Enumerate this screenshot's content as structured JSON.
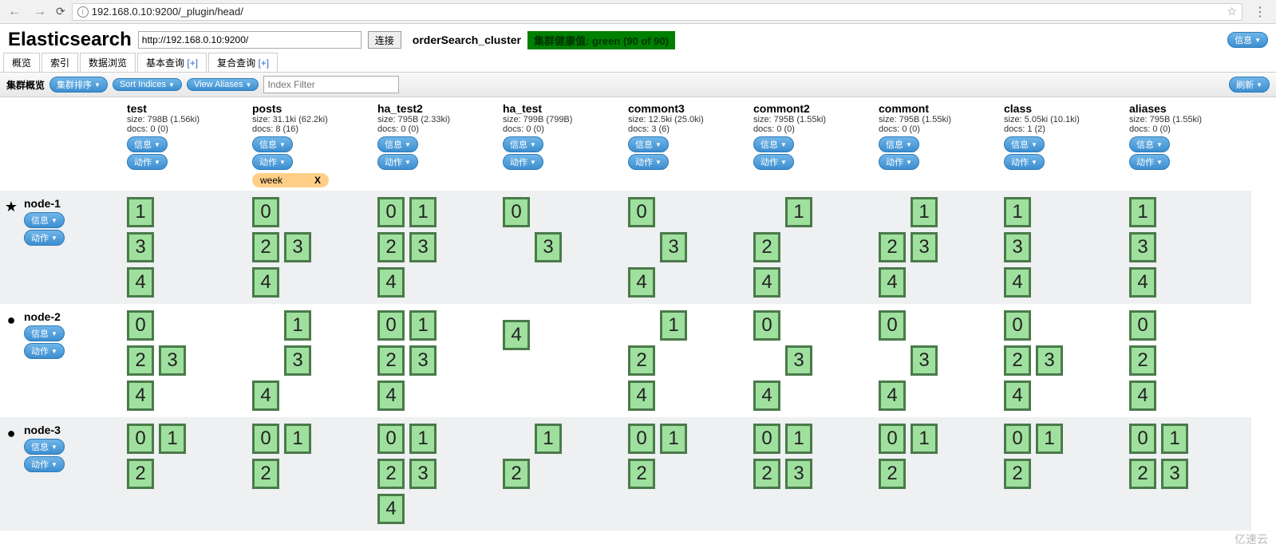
{
  "browser": {
    "url": "192.168.0.10:9200/_plugin/head/",
    "port_highlight": ":9200"
  },
  "header": {
    "title": "Elasticsearch",
    "es_url": "http://192.168.0.10:9200/",
    "connect_label": "连接",
    "cluster_name": "orderSearch_cluster",
    "health_text": "集群健康值: green (90 of 90)",
    "info_btn": "信息"
  },
  "tabs": {
    "overview": "概览",
    "index": "索引",
    "browse": "数据浏览",
    "basic_query": "基本查询",
    "compound_query": "复合查询",
    "plus": "[+]"
  },
  "toolbar": {
    "cluster_overview": "集群概览",
    "cluster_sort": "集群排序",
    "sort_indices": "Sort Indices",
    "view_aliases": "View Aliases",
    "index_filter_placeholder": "Index Filter",
    "refresh": "刷新"
  },
  "common": {
    "info_btn": "信息",
    "action_btn": "动作"
  },
  "indices": [
    {
      "name": "test",
      "size": "size: 798B (1.56ki)",
      "docs": "docs: 0 (0)",
      "alias": null
    },
    {
      "name": "posts",
      "size": "size: 31.1ki (62.2ki)",
      "docs": "docs: 8 (16)",
      "alias": "week"
    },
    {
      "name": "ha_test2",
      "size": "size: 795B (2.33ki)",
      "docs": "docs: 0 (0)",
      "alias": null
    },
    {
      "name": "ha_test",
      "size": "size: 799B (799B)",
      "docs": "docs: 0 (0)",
      "alias": null
    },
    {
      "name": "commont3",
      "size": "size: 12.5ki (25.0ki)",
      "docs": "docs: 3 (6)",
      "alias": null
    },
    {
      "name": "commont2",
      "size": "size: 795B (1.55ki)",
      "docs": "docs: 0 (0)",
      "alias": null
    },
    {
      "name": "commont",
      "size": "size: 795B (1.55ki)",
      "docs": "docs: 0 (0)",
      "alias": null
    },
    {
      "name": "class",
      "size": "size: 5.05ki (10.1ki)",
      "docs": "docs: 1 (2)",
      "alias": null
    },
    {
      "name": "aliases",
      "size": "size: 795B (1.55ki)",
      "docs": "docs: 0 (0)",
      "alias": null
    }
  ],
  "nodes": [
    {
      "name": "node-1",
      "mark": "star"
    },
    {
      "name": "node-2",
      "mark": "dot"
    },
    {
      "name": "node-3",
      "mark": "dot"
    }
  ],
  "shards": {
    "node-1": {
      "test": [
        [
          "1"
        ],
        [
          "3"
        ],
        [
          "4"
        ]
      ],
      "posts": [
        [
          "0"
        ],
        [
          "2",
          "3"
        ],
        [
          "4"
        ]
      ],
      "ha_test2": [
        [
          "0",
          "1"
        ],
        [
          "2",
          "3"
        ],
        [
          "4"
        ]
      ],
      "ha_test": [
        [
          "0"
        ],
        [
          "_",
          "3"
        ]
      ],
      "commont3": [
        [
          "0"
        ],
        [
          "_",
          "3"
        ],
        [
          "4"
        ]
      ],
      "commont2": [
        [
          "_",
          "1"
        ],
        [
          "2"
        ],
        [
          "4"
        ]
      ],
      "commont": [
        [
          "_",
          "1"
        ],
        [
          "2",
          "3"
        ],
        [
          "4"
        ]
      ],
      "class": [
        [
          "1"
        ],
        [
          "3"
        ],
        [
          "4"
        ]
      ],
      "aliases": [
        [
          "1"
        ],
        [
          "3"
        ],
        [
          "4"
        ]
      ]
    },
    "node-2": {
      "test": [
        [
          "0"
        ],
        [
          "2",
          "3"
        ],
        [
          "4"
        ]
      ],
      "posts": [
        [
          "_",
          "1"
        ],
        [
          "_",
          "3"
        ],
        [
          "4"
        ]
      ],
      "ha_test2": [
        [
          "0",
          "1"
        ],
        [
          "2",
          "3"
        ],
        [
          "4"
        ]
      ],
      "ha_test": [
        [],
        [],
        [
          "4"
        ]
      ],
      "commont3": [
        [
          "_",
          "1"
        ],
        [
          "2"
        ],
        [
          "4"
        ]
      ],
      "commont2": [
        [
          "0"
        ],
        [
          "_",
          "3"
        ],
        [
          "4"
        ]
      ],
      "commont": [
        [
          "0"
        ],
        [
          "_",
          "3"
        ],
        [
          "4"
        ]
      ],
      "class": [
        [
          "0"
        ],
        [
          "2",
          "3"
        ],
        [
          "4"
        ]
      ],
      "aliases": [
        [
          "0"
        ],
        [
          "2"
        ],
        [
          "4"
        ]
      ]
    },
    "node-3": {
      "test": [
        [
          "0",
          "1"
        ],
        [
          "2"
        ]
      ],
      "posts": [
        [
          "0",
          "1"
        ],
        [
          "2"
        ]
      ],
      "ha_test2": [
        [
          "0",
          "1"
        ],
        [
          "2",
          "3"
        ],
        [
          "4"
        ]
      ],
      "ha_test": [
        [
          "_",
          "1"
        ],
        [
          "2"
        ]
      ],
      "commont3": [
        [
          "0",
          "1"
        ],
        [
          "2"
        ]
      ],
      "commont2": [
        [
          "0",
          "1"
        ],
        [
          "2",
          "3"
        ]
      ],
      "commont": [
        [
          "0",
          "1"
        ],
        [
          "2"
        ]
      ],
      "class": [
        [
          "0",
          "1"
        ],
        [
          "2"
        ]
      ],
      "aliases": [
        [
          "0",
          "1"
        ],
        [
          "2",
          "3"
        ]
      ]
    }
  },
  "colors": {
    "shard_fill": "#9fe09f",
    "shard_border": "#4a7a4a",
    "health_bg": "#008000",
    "alias_bg": "#ffcf88",
    "blue_btn_top": "#6fb5e8",
    "blue_btn_bottom": "#3d8fd1"
  },
  "watermark": "亿速云"
}
